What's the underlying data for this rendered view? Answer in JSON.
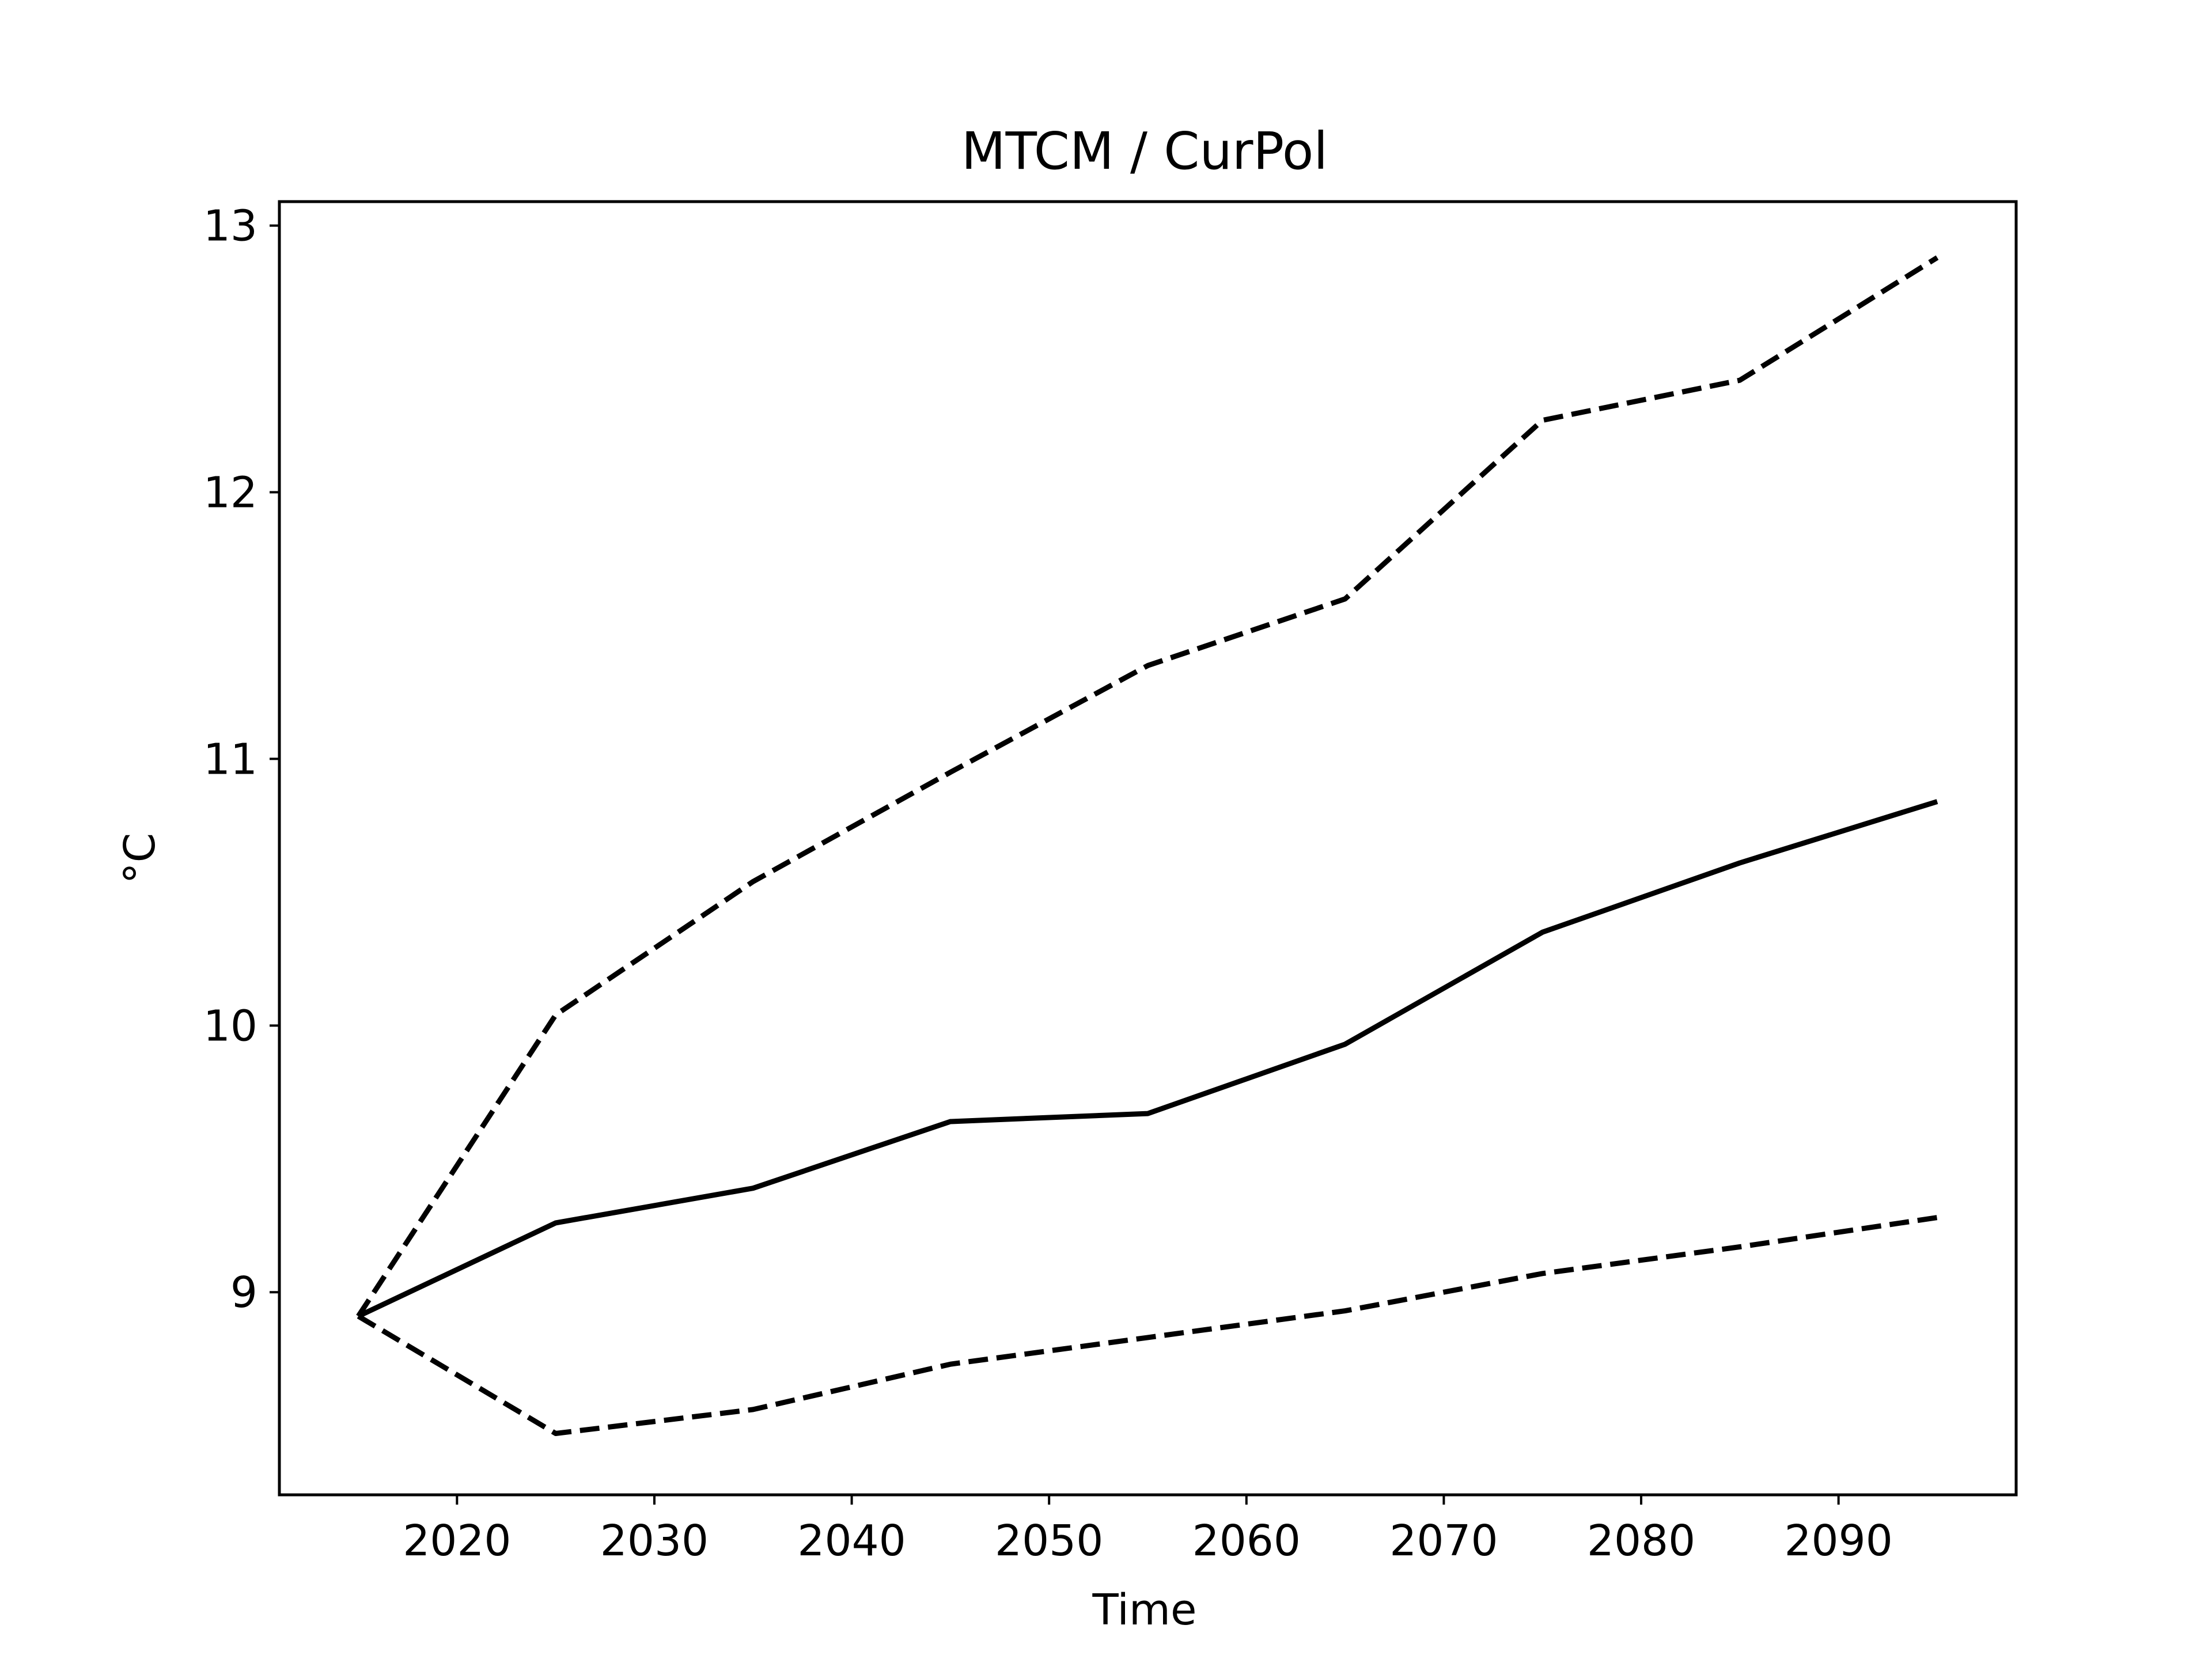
{
  "chart_data": {
    "type": "line",
    "title": "MTCM / CurPol",
    "xlabel": "Time",
    "ylabel": "°C",
    "xlim": [
      2011,
      2099
    ],
    "ylim": [
      8.24,
      13.09
    ],
    "x_ticks": [
      2020,
      2030,
      2040,
      2050,
      2060,
      2070,
      2080,
      2090
    ],
    "y_ticks": [
      9,
      10,
      11,
      12,
      13
    ],
    "grid": false,
    "legend": "none",
    "x": [
      2015,
      2025,
      2035,
      2045,
      2055,
      2065,
      2075,
      2085,
      2095
    ],
    "series": [
      {
        "style": "solid",
        "color": "#000000",
        "values": [
          8.91,
          9.26,
          9.39,
          9.64,
          9.67,
          9.93,
          10.35,
          10.61,
          10.84
        ]
      },
      {
        "style": "dashed",
        "color": "#000000",
        "values": [
          8.91,
          10.04,
          10.54,
          10.95,
          11.35,
          11.6,
          12.27,
          12.42,
          12.88
        ]
      },
      {
        "style": "dashed",
        "color": "#000000",
        "values": [
          8.91,
          8.47,
          8.56,
          8.73,
          8.83,
          8.93,
          9.07,
          9.17,
          9.28
        ]
      }
    ]
  }
}
